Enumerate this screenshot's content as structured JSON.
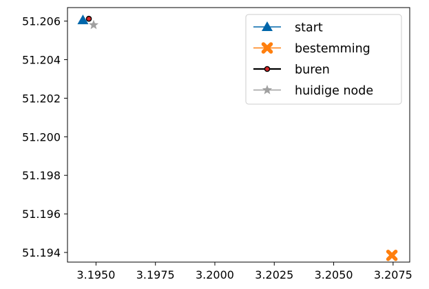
{
  "chart_data": {
    "type": "scatter",
    "title": "",
    "xlabel": "",
    "ylabel": "",
    "xlim": [
      3.1938,
      3.2082
    ],
    "ylim": [
      51.1935,
      51.2067
    ],
    "x_ticks": [
      {
        "value": 3.195,
        "label": "3.1950"
      },
      {
        "value": 3.1975,
        "label": "3.1975"
      },
      {
        "value": 3.2,
        "label": "3.2000"
      },
      {
        "value": 3.2025,
        "label": "3.2025"
      },
      {
        "value": 3.205,
        "label": "3.2050"
      },
      {
        "value": 3.2075,
        "label": "3.2075"
      }
    ],
    "y_ticks": [
      {
        "value": 51.194,
        "label": "51.194"
      },
      {
        "value": 51.196,
        "label": "51.196"
      },
      {
        "value": 51.198,
        "label": "51.198"
      },
      {
        "value": 51.2,
        "label": "51.200"
      },
      {
        "value": 51.202,
        "label": "51.202"
      },
      {
        "value": 51.204,
        "label": "51.204"
      },
      {
        "value": 51.206,
        "label": "51.206"
      }
    ],
    "grid": false,
    "legend_position": "top-right",
    "series": [
      {
        "name": "start",
        "marker": "triangle",
        "color": "#0066aa",
        "points": [
          {
            "x": 3.19445,
            "y": 51.20605
          }
        ]
      },
      {
        "name": "bestemming",
        "marker": "x-filled",
        "color": "#ff7f0e",
        "points": [
          {
            "x": 3.20745,
            "y": 51.19385
          }
        ]
      },
      {
        "name": "buren",
        "marker": "circle",
        "color": "#d62728",
        "edge_color": "#000000",
        "points": [
          {
            "x": 3.1947,
            "y": 51.20612
          }
        ]
      },
      {
        "name": "huidige node",
        "marker": "star",
        "color": "#a0a0a0",
        "points": [
          {
            "x": 3.1949,
            "y": 51.2058
          }
        ]
      }
    ]
  }
}
